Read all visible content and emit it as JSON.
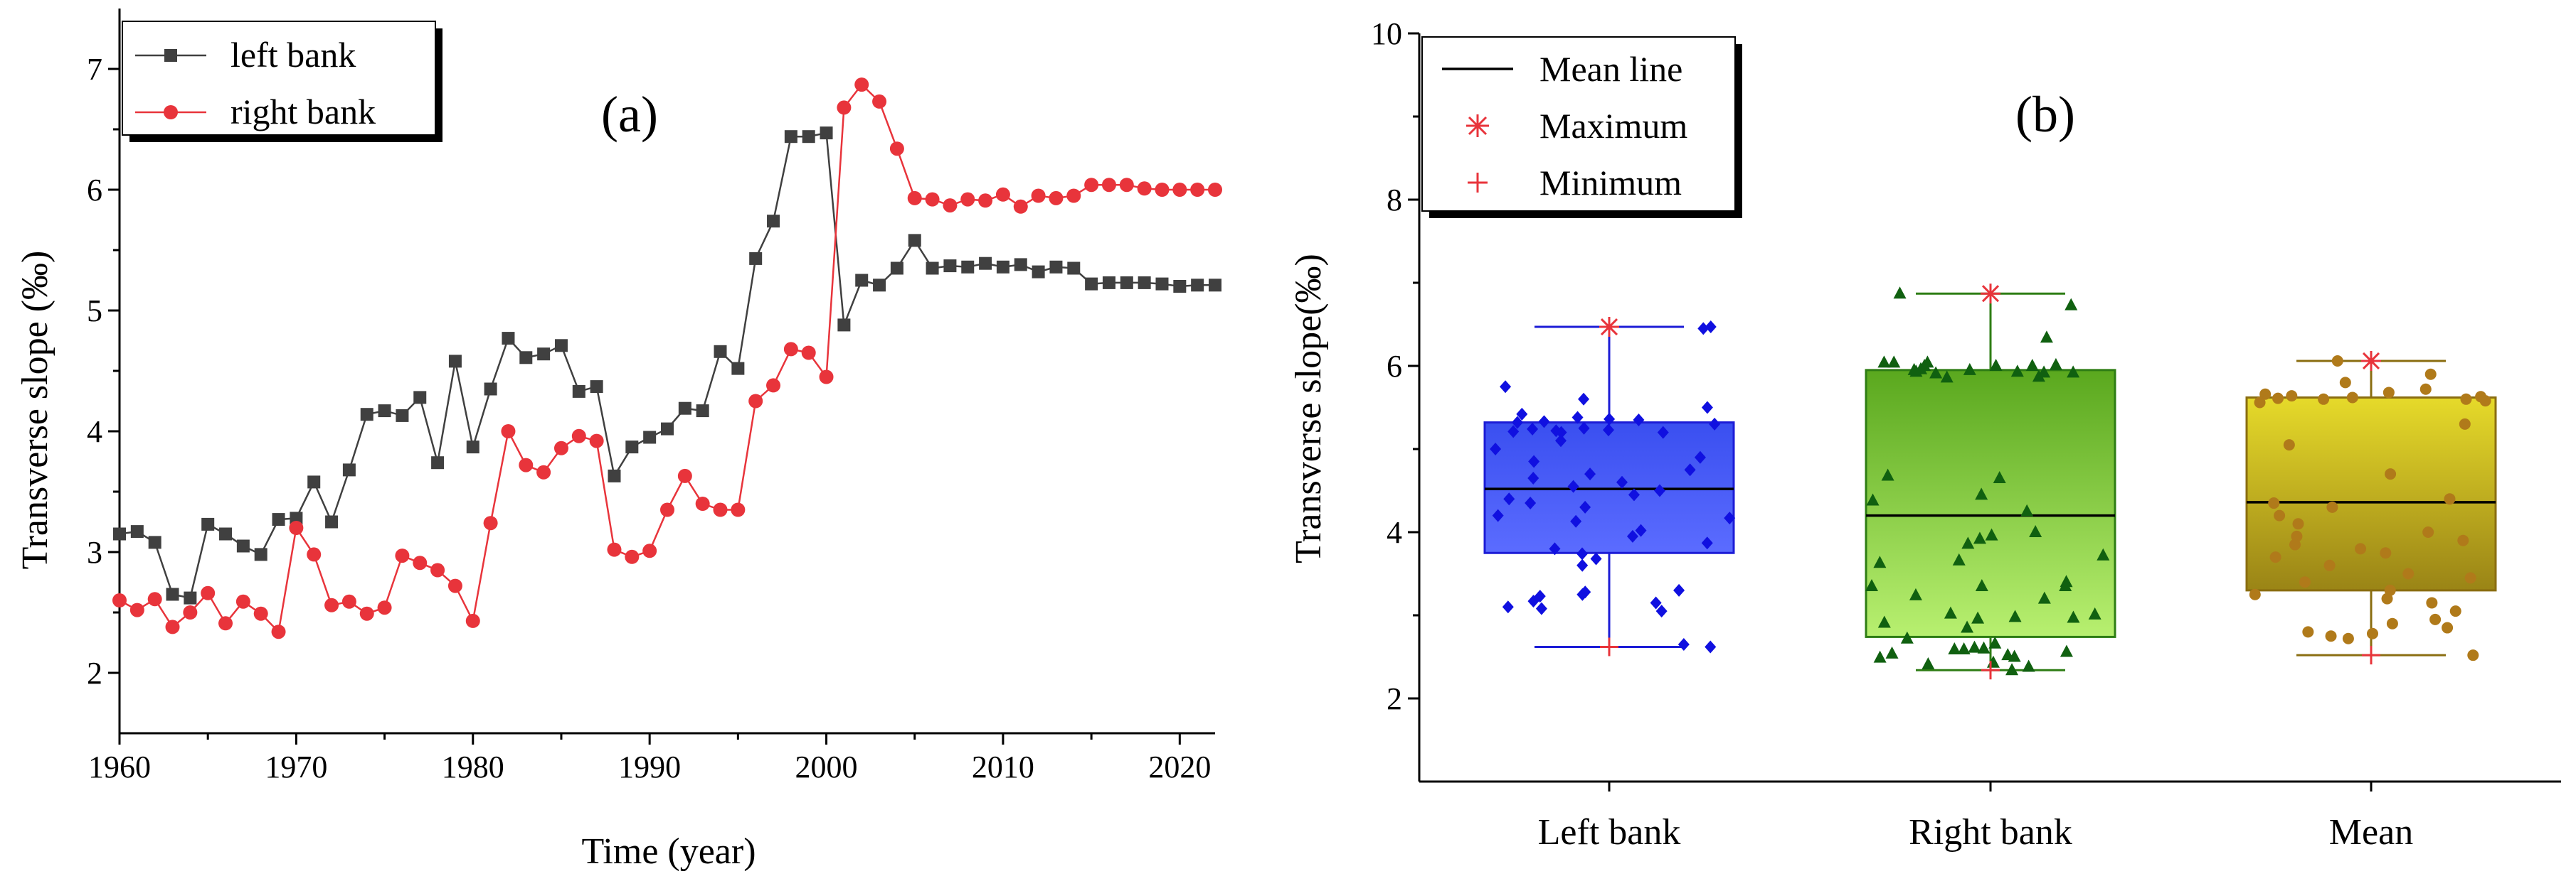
{
  "chart_data": [
    {
      "type": "line",
      "panel_label": "(a)",
      "xlabel": "Time (year)",
      "ylabel": "Transverse slope (‰)",
      "xlim": [
        1960,
        2022
      ],
      "ylim": [
        1.5,
        7.5
      ],
      "x_ticks": [
        "1960",
        "1970",
        "1980",
        "1990",
        "2000",
        "2010",
        "2020"
      ],
      "y_ticks": [
        "2",
        "3",
        "4",
        "5",
        "6",
        "7"
      ],
      "legend_position": "top-left",
      "x": [
        1960,
        1961,
        1962,
        1963,
        1964,
        1965,
        1966,
        1967,
        1968,
        1969,
        1970,
        1971,
        1972,
        1973,
        1974,
        1975,
        1976,
        1977,
        1978,
        1979,
        1980,
        1981,
        1982,
        1983,
        1984,
        1985,
        1986,
        1987,
        1988,
        1989,
        1990,
        1991,
        1992,
        1993,
        1994,
        1995,
        1996,
        1997,
        1998,
        1999,
        2000,
        2001,
        2002,
        2003,
        2004,
        2005,
        2006,
        2007,
        2008,
        2009,
        2010,
        2011,
        2012,
        2013,
        2014,
        2015,
        2016,
        2017,
        2018,
        2019,
        2020,
        2021,
        2022
      ],
      "series": [
        {
          "name": "left bank",
          "color": "#404040",
          "marker": "square",
          "values": [
            3.15,
            3.17,
            3.08,
            2.65,
            2.62,
            3.23,
            3.15,
            3.05,
            2.98,
            3.27,
            3.28,
            3.58,
            3.25,
            3.68,
            4.14,
            4.17,
            4.13,
            4.28,
            3.74,
            4.58,
            3.87,
            4.35,
            4.77,
            4.61,
            4.64,
            4.71,
            4.33,
            4.37,
            3.63,
            3.87,
            3.95,
            4.02,
            4.19,
            4.17,
            4.66,
            4.52,
            5.43,
            5.74,
            6.44,
            6.44,
            6.47,
            4.88,
            5.25,
            5.21,
            5.35,
            5.58,
            5.35,
            5.37,
            5.36,
            5.39,
            5.36,
            5.38,
            5.32,
            5.36,
            5.35,
            5.22,
            5.23,
            5.23,
            5.23,
            5.22,
            5.2,
            5.21,
            5.21
          ]
        },
        {
          "name": "right bank",
          "color": "#e8343b",
          "marker": "circle",
          "values": [
            2.6,
            2.52,
            2.61,
            2.38,
            2.5,
            2.66,
            2.41,
            2.59,
            2.49,
            2.34,
            3.2,
            2.98,
            2.56,
            2.59,
            2.49,
            2.54,
            2.97,
            2.91,
            2.85,
            2.72,
            2.43,
            3.24,
            4.0,
            3.72,
            3.66,
            3.86,
            3.96,
            3.92,
            3.02,
            2.96,
            3.01,
            3.35,
            3.63,
            3.4,
            3.35,
            3.35,
            4.25,
            4.38,
            4.68,
            4.65,
            4.45,
            6.68,
            6.87,
            6.73,
            6.34,
            5.93,
            5.92,
            5.87,
            5.92,
            5.91,
            5.96,
            5.86,
            5.95,
            5.93,
            5.95,
            6.04,
            6.04,
            6.04,
            6.01,
            6.0,
            6.0,
            6.0,
            6.0
          ]
        }
      ]
    },
    {
      "type": "box",
      "panel_label": "(b)",
      "ylabel": "Transverse slope(‰)",
      "ylim": [
        1,
        10
      ],
      "y_ticks": [
        "2",
        "4",
        "6",
        "8",
        "10"
      ],
      "categories": [
        "Left bank",
        "Right bank",
        "Mean"
      ],
      "legend_position": "top-left",
      "legend": [
        {
          "label": "Mean line",
          "symbol": "line"
        },
        {
          "label": "Maximum",
          "symbol": "asterisk"
        },
        {
          "label": "Minimum",
          "symbol": "plus"
        }
      ],
      "boxes": [
        {
          "name": "Left bank",
          "q1": 3.75,
          "q3": 5.32,
          "mean": 4.52,
          "min": 2.62,
          "max": 6.47,
          "fill_top": "#3a4ff0",
          "fill_bottom": "#5b6cff",
          "edge": "#1c1cd6",
          "point_color": "#1010e0",
          "point_marker": "diamond",
          "points": [
            6.45,
            6.47,
            5.75,
            5.6,
            5.5,
            5.42,
            5.38,
            5.36,
            5.35,
            5.33,
            5.32,
            5.3,
            5.25,
            5.24,
            5.23,
            5.22,
            5.21,
            5.2,
            5.2,
            5.1,
            5.0,
            4.9,
            4.85,
            4.75,
            4.7,
            4.65,
            4.6,
            4.55,
            4.5,
            4.45,
            4.4,
            4.35,
            4.3,
            4.2,
            4.17,
            4.13,
            4.02,
            3.95,
            3.87,
            3.8,
            3.74,
            3.68,
            3.6,
            3.3,
            3.28,
            3.25,
            3.23,
            3.17,
            3.15,
            3.1,
            3.08,
            3.05,
            2.65,
            2.62
          ]
        },
        {
          "name": "Right bank",
          "q1": 2.74,
          "q3": 5.95,
          "mean": 4.2,
          "min": 2.34,
          "max": 6.87,
          "fill_top": "#5aa81e",
          "fill_bottom": "#b8f070",
          "edge": "#2e7d14",
          "point_color": "#106010",
          "point_marker": "triangle",
          "points": [
            6.87,
            6.73,
            6.34,
            6.04,
            6.04,
            6.04,
            6.01,
            6.0,
            6.0,
            6.0,
            5.96,
            5.95,
            5.95,
            5.93,
            5.93,
            5.92,
            5.92,
            5.91,
            5.87,
            5.86,
            4.68,
            4.65,
            4.45,
            4.38,
            4.25,
            4.0,
            3.96,
            3.92,
            3.86,
            3.72,
            3.66,
            3.63,
            3.4,
            3.35,
            3.35,
            3.35,
            3.24,
            3.2,
            3.02,
            3.01,
            2.98,
            2.97,
            2.96,
            2.91,
            2.85,
            2.72,
            2.66,
            2.61,
            2.6,
            2.59,
            2.59,
            2.56,
            2.54,
            2.52,
            2.5,
            2.49,
            2.43,
            2.41,
            2.38,
            2.34
          ]
        },
        {
          "name": "Mean",
          "q1": 3.3,
          "q3": 5.62,
          "mean": 4.36,
          "min": 2.52,
          "max": 6.06,
          "fill_top": "#e6da2a",
          "fill_bottom": "#9a8416",
          "edge": "#8a6d10",
          "point_color": "#b07a1a",
          "point_marker": "circle",
          "points": [
            6.06,
            5.9,
            5.8,
            5.72,
            5.68,
            5.66,
            5.64,
            5.63,
            5.62,
            5.61,
            5.6,
            5.6,
            5.58,
            5.56,
            5.3,
            5.05,
            4.7,
            4.4,
            4.35,
            4.3,
            4.2,
            4.1,
            4.0,
            3.95,
            3.9,
            3.85,
            3.8,
            3.75,
            3.7,
            3.6,
            3.5,
            3.45,
            3.4,
            3.3,
            3.25,
            3.2,
            3.15,
            3.05,
            2.95,
            2.9,
            2.85,
            2.8,
            2.78,
            2.75,
            2.72,
            2.52
          ]
        }
      ]
    }
  ]
}
